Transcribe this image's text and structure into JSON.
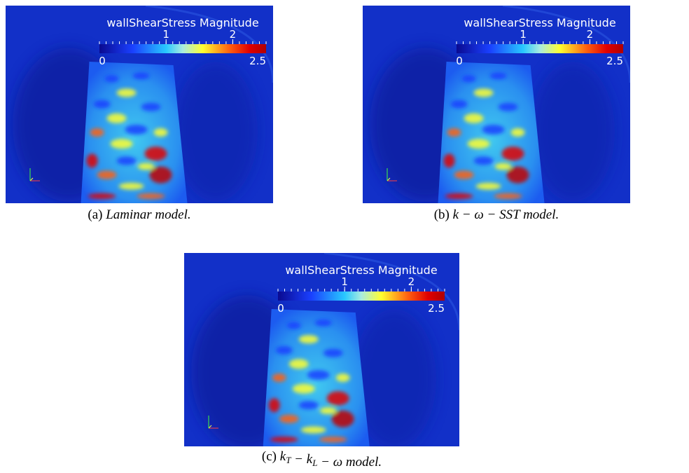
{
  "figure": {
    "panels": [
      {
        "colorbar": {
          "title": "wallShearStress Magnitude",
          "min": 0,
          "max": 2.5,
          "ticks": [
            1,
            2
          ]
        },
        "caption": {
          "label": "(a)",
          "segments": [
            {
              "text": "Laminar model."
            }
          ]
        }
      },
      {
        "colorbar": {
          "title": "wallShearStress Magnitude",
          "min": 0,
          "max": 2.5,
          "ticks": [
            1,
            2
          ]
        },
        "caption": {
          "label": "(b)",
          "segments": [
            {
              "text": "k − ω − SST model."
            }
          ]
        }
      },
      {
        "colorbar": {
          "title": "wallShearStress Magnitude",
          "min": 0,
          "max": 2.5,
          "ticks": [
            1,
            2
          ]
        },
        "caption": {
          "label": "(c)",
          "segments": [
            {
              "text": "k"
            },
            {
              "sub": "T"
            },
            {
              "text": " − k"
            },
            {
              "sub": "L"
            },
            {
              "text": " − ω model."
            }
          ]
        }
      }
    ]
  }
}
